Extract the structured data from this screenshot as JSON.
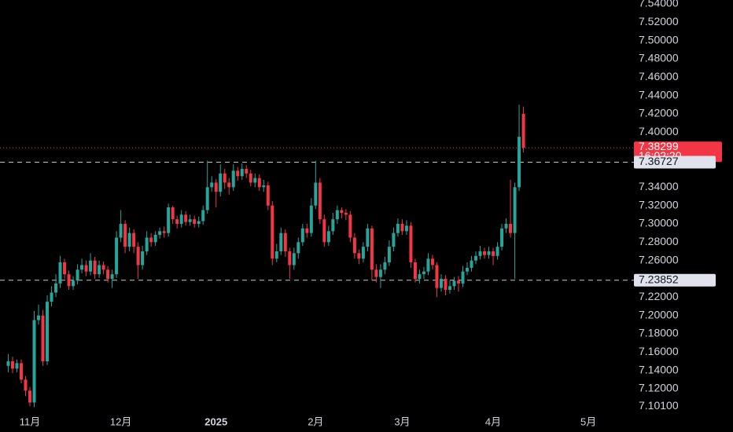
{
  "chart_data": {
    "type": "candlestick",
    "up_color": "#26a69a",
    "down_color": "#f23645",
    "ylim": [
      7.09,
      7.5443
    ],
    "yticks": [
      {
        "value": 7.54,
        "label": "7.54000"
      },
      {
        "value": 7.52,
        "label": "7.52000"
      },
      {
        "value": 7.5,
        "label": "7.50000"
      },
      {
        "value": 7.48,
        "label": "7.48000"
      },
      {
        "value": 7.46,
        "label": "7.46000"
      },
      {
        "value": 7.44,
        "label": "7.44000"
      },
      {
        "value": 7.42,
        "label": "7.42000"
      },
      {
        "value": 7.4,
        "label": "7.40000"
      },
      {
        "value": 7.34,
        "label": "7.34000"
      },
      {
        "value": 7.32,
        "label": "7.32000"
      },
      {
        "value": 7.3,
        "label": "7.30000"
      },
      {
        "value": 7.28,
        "label": "7.28000"
      },
      {
        "value": 7.26,
        "label": "7.26000"
      },
      {
        "value": 7.22,
        "label": "7.22000"
      },
      {
        "value": 7.2,
        "label": "7.20000"
      },
      {
        "value": 7.18,
        "label": "7.18000"
      },
      {
        "value": 7.16,
        "label": "7.16000"
      },
      {
        "value": 7.14,
        "label": "7.14000"
      },
      {
        "value": 7.12,
        "label": "7.12000"
      },
      {
        "value": 7.101,
        "label": "7.10100"
      }
    ],
    "last_price": {
      "value": 7.38299,
      "countdown": "16:02:20"
    },
    "price_lines": [
      {
        "value": 7.36727
      },
      {
        "value": 7.23852
      }
    ],
    "categories": [
      null,
      null,
      null,
      null,
      null,
      "11月",
      null,
      null,
      null,
      null,
      null,
      null,
      null,
      null,
      null,
      null,
      null,
      null,
      null,
      null,
      null,
      null,
      null,
      null,
      null,
      null,
      "12月",
      null,
      null,
      null,
      null,
      null,
      null,
      null,
      null,
      null,
      null,
      null,
      null,
      null,
      null,
      null,
      null,
      null,
      null,
      null,
      null,
      null,
      "2025",
      null,
      null,
      null,
      null,
      null,
      null,
      null,
      null,
      null,
      null,
      null,
      null,
      null,
      null,
      null,
      null,
      null,
      null,
      null,
      null,
      null,
      null,
      "2月",
      null,
      null,
      null,
      null,
      null,
      null,
      null,
      null,
      null,
      null,
      null,
      null,
      null,
      null,
      null,
      null,
      null,
      null,
      null,
      "3月",
      null,
      null,
      null,
      null,
      null,
      null,
      null,
      null,
      null,
      null,
      null,
      null,
      null,
      null,
      null,
      null,
      null,
      null,
      null,
      null,
      "4月",
      null,
      null,
      null,
      null,
      null,
      null,
      null,
      null,
      null,
      null,
      null,
      null,
      null,
      null,
      null,
      null,
      null,
      null,
      null,
      null,
      null,
      "5月",
      null,
      null,
      null,
      null,
      null,
      null,
      null,
      null,
      null
    ],
    "open": [
      7.145,
      7.15,
      7.142,
      7.148,
      7.13,
      7.118,
      7.105,
      7.195,
      7.2,
      7.15,
      7.215,
      7.225,
      7.235,
      7.258,
      7.245,
      7.232,
      7.238,
      7.25,
      7.255,
      7.248,
      7.26,
      7.245,
      7.255,
      7.25,
      7.24,
      7.245,
      7.285,
      7.3,
      7.275,
      7.29,
      7.275,
      7.255,
      7.27,
      7.285,
      7.28,
      7.288,
      7.292,
      7.29,
      7.318,
      7.305,
      7.3,
      7.31,
      7.302,
      7.305,
      7.3,
      7.303,
      7.315,
      7.34,
      7.345,
      7.335,
      7.355,
      7.345,
      7.34,
      7.358,
      7.352,
      7.36,
      7.355,
      7.345,
      7.35,
      7.34,
      7.342,
      7.32,
      7.262,
      7.27,
      7.29,
      7.27,
      7.255,
      7.268,
      7.28,
      7.295,
      7.29,
      7.32,
      7.345,
      7.305,
      7.28,
      7.292,
      7.305,
      7.315,
      7.312,
      7.31,
      7.285,
      7.268,
      7.262,
      7.275,
      7.295,
      7.25,
      7.242,
      7.25,
      7.258,
      7.275,
      7.29,
      7.3,
      7.292,
      7.298,
      7.258,
      7.24,
      7.245,
      7.248,
      7.262,
      7.255,
      7.23,
      7.24,
      7.228,
      7.232,
      7.238,
      7.235,
      7.248,
      7.252,
      7.26,
      7.265,
      7.27,
      7.266,
      7.27,
      7.265,
      7.275,
      7.295,
      7.3,
      7.29,
      7.34,
      7.42,
      null,
      null,
      null,
      null,
      null,
      null,
      null,
      null,
      null,
      null,
      null,
      null,
      null,
      null,
      null,
      null,
      null,
      null,
      null,
      null,
      null,
      null,
      null,
      null
    ],
    "high": [
      7.158,
      7.155,
      7.152,
      7.152,
      7.134,
      7.122,
      7.205,
      7.212,
      7.206,
      7.222,
      7.232,
      7.245,
      7.265,
      7.262,
      7.249,
      7.243,
      7.256,
      7.262,
      7.26,
      7.268,
      7.264,
      7.26,
      7.259,
      7.254,
      7.25,
      7.292,
      7.315,
      7.304,
      7.296,
      7.294,
      7.28,
      7.276,
      7.292,
      7.29,
      7.292,
      7.296,
      7.297,
      7.322,
      7.32,
      7.309,
      7.315,
      7.314,
      7.31,
      7.309,
      7.308,
      7.32,
      7.369,
      7.352,
      7.349,
      7.365,
      7.36,
      7.35,
      7.365,
      7.362,
      7.366,
      7.364,
      7.359,
      7.355,
      7.354,
      7.348,
      7.346,
      7.325,
      7.278,
      7.296,
      7.294,
      7.274,
      7.274,
      7.285,
      7.3,
      7.3,
      7.328,
      7.369,
      7.35,
      7.31,
      7.298,
      7.312,
      7.32,
      7.318,
      7.316,
      7.314,
      7.29,
      7.272,
      7.28,
      7.3,
      7.298,
      7.256,
      7.256,
      7.264,
      7.282,
      7.296,
      7.306,
      7.305,
      7.304,
      7.302,
      7.262,
      7.25,
      7.253,
      7.268,
      7.266,
      7.258,
      7.245,
      7.244,
      7.238,
      7.242,
      7.243,
      7.254,
      7.258,
      7.265,
      7.27,
      7.276,
      7.274,
      7.275,
      7.274,
      7.28,
      7.3,
      7.306,
      7.348,
      7.345,
      7.43,
      7.428,
      null,
      null,
      null,
      null,
      null,
      null,
      null,
      null,
      null,
      null,
      null,
      null,
      null,
      null,
      null,
      null,
      null,
      null,
      null,
      null,
      null,
      null,
      null,
      null
    ],
    "low": [
      7.138,
      7.137,
      7.138,
      7.126,
      7.112,
      7.101,
      7.1,
      7.19,
      7.145,
      7.146,
      7.21,
      7.22,
      7.23,
      7.24,
      7.228,
      7.228,
      7.234,
      7.246,
      7.243,
      7.244,
      7.24,
      7.241,
      7.245,
      7.236,
      7.23,
      7.241,
      7.28,
      7.268,
      7.27,
      7.268,
      7.24,
      7.25,
      7.266,
      7.275,
      7.276,
      7.284,
      7.285,
      7.286,
      7.3,
      7.295,
      7.296,
      7.298,
      7.298,
      7.296,
      7.296,
      7.299,
      7.311,
      7.335,
      7.318,
      7.33,
      7.338,
      7.332,
      7.336,
      7.347,
      7.348,
      7.35,
      7.341,
      7.34,
      7.336,
      7.335,
      7.315,
      7.255,
      7.258,
      7.266,
      7.264,
      7.24,
      7.25,
      7.262,
      7.276,
      7.285,
      7.286,
      7.316,
      7.3,
      7.275,
      7.276,
      7.288,
      7.3,
      7.306,
      7.304,
      7.28,
      7.262,
      7.256,
      7.258,
      7.27,
      7.238,
      7.236,
      7.23,
      7.245,
      7.254,
      7.27,
      7.286,
      7.288,
      7.288,
      7.252,
      7.236,
      7.235,
      7.24,
      7.244,
      7.25,
      7.22,
      7.226,
      7.222,
      7.224,
      7.228,
      7.226,
      7.231,
      7.244,
      7.248,
      7.256,
      7.261,
      7.262,
      7.262,
      7.255,
      7.261,
      7.271,
      7.29,
      7.285,
      7.24,
      7.336,
      7.378,
      null,
      null,
      null,
      null,
      null,
      null,
      null,
      null,
      null,
      null,
      null,
      null,
      null,
      null,
      null,
      null,
      null,
      null,
      null,
      null,
      null,
      null,
      null,
      null
    ],
    "close": [
      7.15,
      7.142,
      7.148,
      7.13,
      7.118,
      7.105,
      7.195,
      7.2,
      7.15,
      7.215,
      7.225,
      7.235,
      7.258,
      7.245,
      7.232,
      7.238,
      7.25,
      7.255,
      7.248,
      7.26,
      7.245,
      7.255,
      7.25,
      7.24,
      7.245,
      7.285,
      7.3,
      7.275,
      7.29,
      7.275,
      7.255,
      7.27,
      7.285,
      7.28,
      7.288,
      7.292,
      7.29,
      7.318,
      7.305,
      7.3,
      7.31,
      7.302,
      7.305,
      7.3,
      7.303,
      7.315,
      7.34,
      7.345,
      7.335,
      7.355,
      7.345,
      7.34,
      7.358,
      7.352,
      7.36,
      7.355,
      7.345,
      7.35,
      7.34,
      7.342,
      7.32,
      7.262,
      7.27,
      7.29,
      7.27,
      7.255,
      7.268,
      7.28,
      7.295,
      7.29,
      7.32,
      7.345,
      7.305,
      7.28,
      7.292,
      7.305,
      7.315,
      7.312,
      7.31,
      7.285,
      7.268,
      7.262,
      7.275,
      7.295,
      7.25,
      7.242,
      7.25,
      7.258,
      7.275,
      7.29,
      7.3,
      7.292,
      7.298,
      7.258,
      7.24,
      7.245,
      7.248,
      7.262,
      7.255,
      7.23,
      7.24,
      7.228,
      7.232,
      7.238,
      7.235,
      7.248,
      7.252,
      7.26,
      7.265,
      7.27,
      7.266,
      7.27,
      7.265,
      7.275,
      7.295,
      7.3,
      7.29,
      7.34,
      7.395,
      7.38299,
      null,
      null,
      null,
      null,
      null,
      null,
      null,
      null,
      null,
      null,
      null,
      null,
      null,
      null,
      null,
      null,
      null,
      null,
      null,
      null,
      null,
      null,
      null,
      null
    ]
  }
}
